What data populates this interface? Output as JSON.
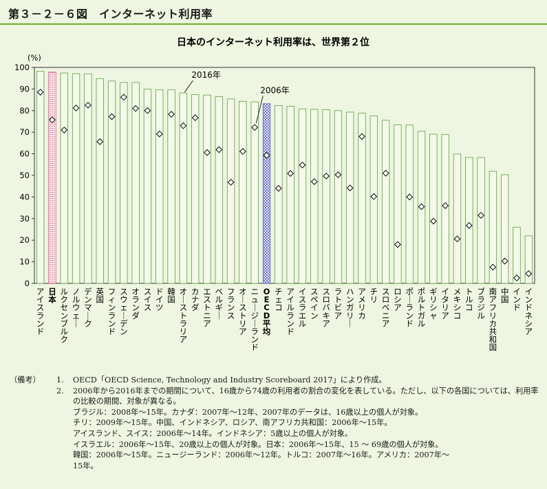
{
  "figure_label": "第３－２－６図　インターネット利用率",
  "chart_data": {
    "type": "bar",
    "title": "日本のインターネット利用率は、世界第２位",
    "ylabel": "(%)",
    "ylim": [
      0,
      100
    ],
    "yticks": [
      0,
      10,
      20,
      30,
      40,
      50,
      60,
      70,
      80,
      90,
      100
    ],
    "grid": false,
    "categories": [
      "アイスランド",
      "日本",
      "ルクセンブルク",
      "ノルウェー",
      "デンマーク",
      "英国",
      "フィンランド",
      "スウェーデン",
      "オランダ",
      "スイス",
      "ドイツ",
      "韓国",
      "オーストラリア",
      "カナダ",
      "エストニア",
      "ベルギー",
      "フランス",
      "オーストリア",
      "ニュージーランド",
      "OECD平均",
      "チェコ",
      "アイルランド",
      "イスラエル",
      "スペイン",
      "スロバキア",
      "ラトビア",
      "ハンガリー",
      "アメリカ",
      "チリ",
      "スロベニア",
      "ロシア",
      "ポーランド",
      "ポルトガル",
      "ギリシャ",
      "イタリア",
      "メキシコ",
      "トルコ",
      "ブラジル",
      "南アフリカ共和国",
      "中国",
      "インド",
      "インドネシア"
    ],
    "series": [
      {
        "name": "2016年",
        "style": "bar",
        "values": [
          98.2,
          97.8,
          97.4,
          97.1,
          97.0,
          94.8,
          93.7,
          93.0,
          93.0,
          89.9,
          89.6,
          89.6,
          88.2,
          87.4,
          87.2,
          86.5,
          85.4,
          84.3,
          84.1,
          83.2,
          82.3,
          82.0,
          80.8,
          80.6,
          80.4,
          80.0,
          79.3,
          78.8,
          77.5,
          75.5,
          73.4,
          73.3,
          70.4,
          69.1,
          68.9,
          59.9,
          58.3,
          58.3,
          51.9,
          50.3,
          26.0,
          22.0
        ]
      },
      {
        "name": "2006年",
        "style": "marker",
        "values": [
          88.5,
          75.7,
          71.0,
          81.2,
          82.5,
          65.6,
          77.2,
          86.2,
          81.0,
          80.0,
          69.2,
          78.3,
          73.0,
          76.7,
          60.6,
          61.9,
          46.8,
          61.1,
          72.2,
          59.3,
          44.0,
          50.9,
          54.8,
          47.1,
          49.7,
          50.3,
          44.2,
          68.0,
          40.2,
          51.0,
          18.0,
          40.0,
          35.5,
          28.8,
          36.0,
          20.6,
          26.8,
          31.5,
          7.5,
          10.3,
          2.5,
          4.5
        ]
      }
    ],
    "highlight": {
      "japan_index": 1,
      "oecd_index": 19
    },
    "annotations": {
      "bar_label": "2016年",
      "marker_label": "2006年"
    }
  },
  "notes": {
    "label": "（備考）",
    "items": [
      {
        "num": "1.",
        "text": "OECD「OECD Science, Technology and Industry Scoreboard 2017」により作成。"
      },
      {
        "num": "2.",
        "text": "2006年から2016年までの期間について、16歳から74歳の利用者の割合の変化を表している。ただし、以下の各国については、利用率の比較の期間、対象が異なる。"
      }
    ],
    "sub_lines": [
      "ブラジル：2008年～15年。カナダ：2007年～12年、2007年のデータは、16歳以上の個人が対象。",
      "チリ：2009年～15年。中国、インドネシア、ロシア、南アフリカ共和国：2006年～15年。",
      "アイスランド、スイス：2006年～14年。インドネシア：5歳以上の個人が対象。",
      "イスラエル：2006年～15年、20歳以上の個人が対象。日本：2006年～15年、15 ～ 69歳の個人が対象。",
      "韓国：2006年～15年。ニュージーランド：2006年～12年。トルコ：2007年～16年。アメリカ：2007年～",
      "15年。"
    ]
  },
  "colors": {
    "background": "#eef5e0",
    "accent": "#6fae2e",
    "bar_fill": "#f4f9ea",
    "bar_stroke": "#5aa03c",
    "japan_pattern": "#e0407a",
    "oecd_pattern": "#5a5fc0",
    "marker": "#1a1a1a"
  }
}
